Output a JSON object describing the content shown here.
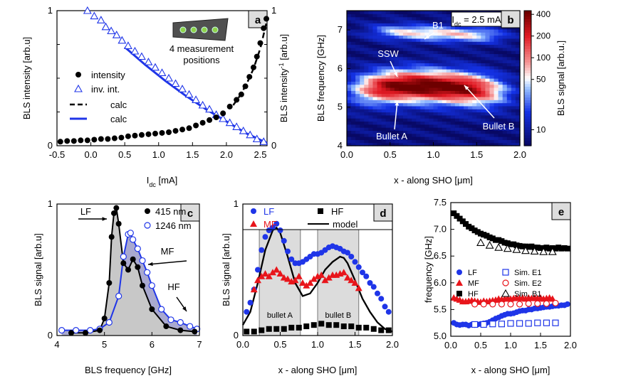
{
  "chart_data": [
    {
      "panel": "a",
      "type": "scatter",
      "xlabel": "I",
      "xlabel_sub": "dc",
      "xlabel_unit": " [mA]",
      "ylabel": "BLS intensity [arb.u]",
      "ylabel_right": "BLS intensity",
      "ylabel_right_sup": "-1",
      "ylabel_right_unit": " [arb.u]",
      "xlim": [
        -0.5,
        2.6
      ],
      "ylim": [
        0,
        1
      ],
      "xticks": [
        "-0.5",
        "0.0",
        "0.5",
        "1.0",
        "1.5",
        "2.0",
        "2.5"
      ],
      "yticks_left": [
        "0",
        "1"
      ],
      "yticks_right": [
        "0",
        "1"
      ],
      "legend": [
        "intensity",
        "inv. int.",
        "calc",
        "calc"
      ],
      "inset_text": "4 measurement positions",
      "inset_lines": [
        "4 measurement",
        "positions"
      ],
      "colors": {
        "intensity": "#000000",
        "inv": "#1f35e8",
        "calc_inv": "#1f35e8"
      },
      "series": [
        {
          "name": "intensity",
          "marker": "circle",
          "x": [
            -0.45,
            -0.35,
            -0.25,
            -0.15,
            -0.05,
            0.05,
            0.15,
            0.25,
            0.35,
            0.45,
            0.55,
            0.65,
            0.75,
            0.85,
            0.95,
            1.05,
            1.15,
            1.25,
            1.35,
            1.45,
            1.55,
            1.65,
            1.75,
            1.85,
            1.95,
            2.05,
            2.15,
            2.22,
            2.28,
            2.34,
            2.4,
            2.45,
            2.5,
            2.55,
            2.59
          ],
          "values": [
            0.03,
            0.035,
            0.035,
            0.04,
            0.04,
            0.045,
            0.05,
            0.05,
            0.055,
            0.06,
            0.07,
            0.075,
            0.08,
            0.085,
            0.09,
            0.095,
            0.1,
            0.11,
            0.12,
            0.13,
            0.15,
            0.17,
            0.19,
            0.21,
            0.24,
            0.29,
            0.34,
            0.38,
            0.44,
            0.51,
            0.58,
            0.66,
            0.76,
            0.87,
            0.94
          ]
        },
        {
          "name": "inv. int.",
          "marker": "triangle",
          "x": [
            -0.05,
            0.05,
            0.15,
            0.22,
            0.3,
            0.38,
            0.46,
            0.55,
            0.65,
            0.75,
            0.85,
            0.95,
            1.05,
            1.15,
            1.25,
            1.35,
            1.45,
            1.55,
            1.65,
            1.75,
            1.85,
            1.95,
            2.05,
            2.15,
            2.25,
            2.35,
            2.45,
            2.55
          ],
          "values": [
            1.0,
            0.96,
            0.93,
            0.88,
            0.85,
            0.82,
            0.78,
            0.74,
            0.7,
            0.66,
            0.62,
            0.58,
            0.54,
            0.5,
            0.46,
            0.42,
            0.38,
            0.34,
            0.3,
            0.27,
            0.23,
            0.2,
            0.17,
            0.14,
            0.11,
            0.08,
            0.05,
            0.03
          ]
        },
        {
          "name": "calc (inv)",
          "marker": "line",
          "x": [
            0.5,
            0.8,
            1.1,
            1.4,
            1.7,
            2.0,
            2.3,
            2.6
          ],
          "values": [
            0.73,
            0.6,
            0.48,
            0.37,
            0.27,
            0.18,
            0.09,
            0.02
          ]
        },
        {
          "name": "calc (int)",
          "marker": "dash",
          "x": [
            2.1,
            2.2,
            2.3,
            2.4,
            2.5,
            2.6
          ],
          "values": [
            0.3,
            0.37,
            0.46,
            0.57,
            0.72,
            0.93
          ]
        }
      ]
    },
    {
      "panel": "b",
      "type": "heatmap",
      "title": "I",
      "title_sub": "dc",
      "title_rest": " = 2.5 mA",
      "xlabel": "x - along SHO [μm]",
      "ylabel": "BLS frequency [GHz]",
      "colorbar_label": "BLS signal [arb.u.]",
      "colorbar_ticks": [
        "400",
        "200",
        "100",
        "50",
        "10"
      ],
      "colorbar_values": [
        400,
        200,
        100,
        50,
        10
      ],
      "colorbar_range": [
        6,
        450
      ],
      "xlim": [
        0,
        2
      ],
      "ylim": [
        4,
        7.5
      ],
      "xticks": [
        "0.0",
        "0.5",
        "1.0",
        "1.5",
        "2.0"
      ],
      "yticks": [
        "4",
        "5",
        "6",
        "7"
      ],
      "annotations": [
        "B1",
        "SSW",
        "Bullet A",
        "Bullet B"
      ],
      "regions": [
        {
          "name": "B1 band",
          "x_range": [
            0.3,
            1.8
          ],
          "freq_center": 6.95,
          "level": "medium"
        },
        {
          "name": "SSW / bullet band",
          "x_range": [
            0.1,
            1.9
          ],
          "freq_center": 5.45,
          "level": "high"
        }
      ]
    },
    {
      "panel": "c",
      "type": "line",
      "xlabel": "BLS frequency [GHz]",
      "ylabel": "BLS signal [arb.u]",
      "xlim": [
        4,
        7
      ],
      "ylim": [
        0,
        1
      ],
      "xticks": [
        "4",
        "5",
        "6",
        "7"
      ],
      "yticks": [
        "0",
        "1"
      ],
      "legend": [
        "415 nm",
        "1246 nm"
      ],
      "labels": [
        "LF",
        "MF",
        "HF"
      ],
      "series": [
        {
          "name": "415 nm",
          "color": "#000000",
          "x": [
            4.3,
            4.6,
            4.9,
            5.0,
            5.1,
            5.15,
            5.2,
            5.25,
            5.3,
            5.4,
            5.5,
            5.6,
            5.7,
            5.8,
            6.0,
            6.3,
            6.6,
            6.9
          ],
          "values": [
            0.02,
            0.02,
            0.04,
            0.13,
            0.4,
            0.75,
            0.93,
            0.97,
            0.85,
            0.55,
            0.5,
            0.58,
            0.52,
            0.38,
            0.2,
            0.07,
            0.04,
            0.03
          ]
        },
        {
          "name": "1246 nm",
          "color": "#1f35e8",
          "x": [
            4.1,
            4.4,
            4.7,
            4.9,
            5.1,
            5.3,
            5.4,
            5.5,
            5.55,
            5.6,
            5.7,
            5.8,
            5.9,
            6.0,
            6.2,
            6.4,
            6.6,
            6.8,
            6.95
          ],
          "values": [
            0.04,
            0.04,
            0.04,
            0.05,
            0.1,
            0.3,
            0.6,
            0.77,
            0.78,
            0.73,
            0.66,
            0.57,
            0.48,
            0.38,
            0.2,
            0.12,
            0.1,
            0.07,
            0.05
          ]
        }
      ]
    },
    {
      "panel": "d",
      "type": "line",
      "xlabel": "x - along SHO [μm]",
      "ylabel": "BLS signal [arb.u]",
      "xlim": [
        0,
        2
      ],
      "ylim": [
        0,
        1
      ],
      "xticks": [
        "0.0",
        "0.5",
        "1.0",
        "1.5",
        "2.0"
      ],
      "yticks": [
        "0",
        "1"
      ],
      "legend": [
        "LF",
        "MF",
        "HF",
        "model"
      ],
      "shaded_regions": [
        {
          "label": "bullet A",
          "x_range": [
            0.22,
            0.77
          ]
        },
        {
          "label": "bullet B",
          "x_range": [
            1.0,
            1.55
          ]
        }
      ],
      "series": [
        {
          "name": "LF",
          "color": "#1f35e8",
          "x": [
            0.05,
            0.1,
            0.15,
            0.2,
            0.25,
            0.3,
            0.35,
            0.4,
            0.45,
            0.5,
            0.55,
            0.6,
            0.65,
            0.7,
            0.75,
            0.8,
            0.85,
            0.9,
            0.95,
            1.0,
            1.05,
            1.1,
            1.15,
            1.2,
            1.25,
            1.3,
            1.35,
            1.4,
            1.45,
            1.5,
            1.55,
            1.6,
            1.65,
            1.7,
            1.75,
            1.8,
            1.85,
            1.9,
            1.95
          ],
          "values": [
            0.18,
            0.25,
            0.35,
            0.5,
            0.65,
            0.75,
            0.8,
            0.82,
            0.85,
            0.8,
            0.72,
            0.64,
            0.58,
            0.55,
            0.55,
            0.56,
            0.58,
            0.6,
            0.62,
            0.62,
            0.63,
            0.65,
            0.67,
            0.68,
            0.67,
            0.66,
            0.64,
            0.63,
            0.6,
            0.56,
            0.52,
            0.48,
            0.45,
            0.4,
            0.37,
            0.32,
            0.28,
            0.22,
            0.18
          ]
        },
        {
          "name": "MF",
          "color": "#e8151b",
          "x": [
            0.15,
            0.2,
            0.25,
            0.3,
            0.35,
            0.4,
            0.45,
            0.5,
            0.55,
            0.6,
            0.65,
            0.7,
            0.75,
            0.8,
            0.85,
            0.9,
            0.95,
            1.0,
            1.05,
            1.1,
            1.15,
            1.2,
            1.25,
            1.3,
            1.35,
            1.4,
            1.45,
            1.5,
            1.55
          ],
          "values": [
            0.35,
            0.42,
            0.45,
            0.47,
            0.45,
            0.48,
            0.5,
            0.47,
            0.44,
            0.43,
            0.41,
            0.42,
            0.45,
            0.4,
            0.38,
            0.4,
            0.43,
            0.45,
            0.46,
            0.42,
            0.44,
            0.46,
            0.46,
            0.47,
            0.48,
            0.44,
            0.42,
            0.4,
            0.36
          ]
        },
        {
          "name": "HF",
          "color": "#000000",
          "x": [
            0.05,
            0.15,
            0.25,
            0.35,
            0.45,
            0.55,
            0.65,
            0.75,
            0.85,
            0.95,
            1.05,
            1.15,
            1.25,
            1.35,
            1.45,
            1.55,
            1.65,
            1.75,
            1.85,
            1.95
          ],
          "values": [
            0.03,
            0.03,
            0.04,
            0.05,
            0.05,
            0.05,
            0.06,
            0.06,
            0.07,
            0.08,
            0.09,
            0.08,
            0.08,
            0.07,
            0.07,
            0.06,
            0.06,
            0.05,
            0.04,
            0.04
          ]
        },
        {
          "name": "model",
          "color": "#000000",
          "x": [
            0.0,
            0.1,
            0.2,
            0.3,
            0.4,
            0.45,
            0.5,
            0.6,
            0.7,
            0.8,
            0.9,
            1.0,
            1.1,
            1.2,
            1.3,
            1.35,
            1.4,
            1.5,
            1.6,
            1.7,
            1.8,
            1.9,
            2.0
          ],
          "values": [
            0.08,
            0.18,
            0.4,
            0.65,
            0.8,
            0.82,
            0.78,
            0.6,
            0.4,
            0.3,
            0.32,
            0.4,
            0.5,
            0.56,
            0.6,
            0.59,
            0.55,
            0.42,
            0.28,
            0.18,
            0.1,
            0.05,
            0.03
          ]
        }
      ]
    },
    {
      "panel": "e",
      "type": "scatter",
      "xlabel": "x - along SHO [μm]",
      "ylabel": "frequency [GHz]",
      "xlim": [
        0,
        2
      ],
      "ylim": [
        5.0,
        7.5
      ],
      "xticks": [
        "0.0",
        "0.5",
        "1.0",
        "1.5",
        "2.0"
      ],
      "yticks": [
        "5.0",
        "5.5",
        "6.0",
        "6.5",
        "7.0",
        "7.5"
      ],
      "legend": [
        "LF",
        "MF",
        "HF",
        "Sim. E1",
        "Sim. E2",
        "Sim. B1"
      ],
      "series": [
        {
          "name": "LF",
          "color": "#1f35e8",
          "marker": "circle",
          "x": [
            0.05,
            0.1,
            0.15,
            0.2,
            0.25,
            0.3,
            0.35,
            0.4,
            0.45,
            0.5,
            0.55,
            0.6,
            0.65,
            0.7,
            0.75,
            0.8,
            0.85,
            0.9,
            0.95,
            1.0,
            1.05,
            1.1,
            1.15,
            1.2,
            1.25,
            1.3,
            1.35,
            1.4,
            1.45,
            1.5,
            1.55,
            1.6,
            1.65,
            1.7,
            1.75,
            1.8,
            1.85,
            1.9,
            1.95
          ],
          "values": [
            5.25,
            5.22,
            5.21,
            5.22,
            5.22,
            5.2,
            5.22,
            5.21,
            5.22,
            5.23,
            5.24,
            5.25,
            5.27,
            5.3,
            5.33,
            5.35,
            5.38,
            5.4,
            5.42,
            5.42,
            5.43,
            5.45,
            5.47,
            5.48,
            5.48,
            5.5,
            5.5,
            5.52,
            5.52,
            5.53,
            5.54,
            5.55,
            5.55,
            5.56,
            5.57,
            5.57,
            5.58,
            5.58,
            5.6
          ]
        },
        {
          "name": "MF",
          "color": "#e8151b",
          "marker": "triangle",
          "x": [
            0.05,
            0.1,
            0.15,
            0.2,
            0.25,
            0.3,
            0.35,
            0.4,
            0.45,
            0.5,
            0.55,
            0.6,
            0.65,
            0.7,
            0.75,
            0.8,
            0.85,
            0.9,
            0.95,
            1.0,
            1.05,
            1.1,
            1.15,
            1.2,
            1.25,
            1.3,
            1.35,
            1.4,
            1.45,
            1.5,
            1.55,
            1.6,
            1.65,
            1.7
          ],
          "values": [
            5.72,
            5.7,
            5.68,
            5.65,
            5.65,
            5.66,
            5.67,
            5.66,
            5.65,
            5.64,
            5.66,
            5.65,
            5.66,
            5.67,
            5.68,
            5.7,
            5.69,
            5.7,
            5.71,
            5.7,
            5.71,
            5.72,
            5.71,
            5.72,
            5.7,
            5.72,
            5.71,
            5.72,
            5.71,
            5.72,
            5.7,
            5.71,
            5.72,
            5.7
          ]
        },
        {
          "name": "HF",
          "color": "#000000",
          "marker": "square",
          "x": [
            0.05,
            0.1,
            0.15,
            0.2,
            0.25,
            0.3,
            0.35,
            0.4,
            0.45,
            0.5,
            0.55,
            0.6,
            0.65,
            0.7,
            0.75,
            0.8,
            0.85,
            0.9,
            0.95,
            1.0,
            1.05,
            1.1,
            1.15,
            1.2,
            1.25,
            1.3,
            1.35,
            1.4,
            1.45,
            1.5,
            1.55,
            1.6,
            1.65,
            1.7,
            1.75,
            1.8,
            1.85,
            1.9,
            1.95
          ],
          "values": [
            7.3,
            7.25,
            7.2,
            7.15,
            7.1,
            7.05,
            7.02,
            6.98,
            6.95,
            6.92,
            6.9,
            6.88,
            6.85,
            6.83,
            6.8,
            6.8,
            6.78,
            6.75,
            6.74,
            6.72,
            6.72,
            6.7,
            6.69,
            6.68,
            6.68,
            6.67,
            6.68,
            6.66,
            6.66,
            6.65,
            6.65,
            6.66,
            6.64,
            6.65,
            6.64,
            6.66,
            6.64,
            6.65,
            6.64
          ]
        },
        {
          "name": "Sim. E1",
          "color": "#1f35e8",
          "marker": "open-square",
          "x": [
            0.4,
            0.55,
            0.7,
            0.85,
            1.0,
            1.15,
            1.3,
            1.45,
            1.6,
            1.75
          ],
          "values": [
            5.22,
            5.22,
            5.23,
            5.23,
            5.24,
            5.24,
            5.24,
            5.25,
            5.25,
            5.25
          ]
        },
        {
          "name": "Sim. E2",
          "color": "#e8151b",
          "marker": "open-circle",
          "x": [
            0.4,
            0.55,
            0.7,
            0.85,
            1.0,
            1.15,
            1.3,
            1.45,
            1.6,
            1.75
          ],
          "values": [
            5.6,
            5.6,
            5.6,
            5.6,
            5.6,
            5.6,
            5.61,
            5.61,
            5.61,
            5.62
          ]
        },
        {
          "name": "Sim. B1",
          "color": "#000000",
          "marker": "open-triangle",
          "x": [
            0.5,
            0.65,
            0.8,
            0.95,
            1.1,
            1.25,
            1.4,
            1.55,
            1.7
          ],
          "values": [
            6.75,
            6.7,
            6.66,
            6.64,
            6.62,
            6.6,
            6.59,
            6.58,
            6.58
          ]
        }
      ]
    }
  ]
}
